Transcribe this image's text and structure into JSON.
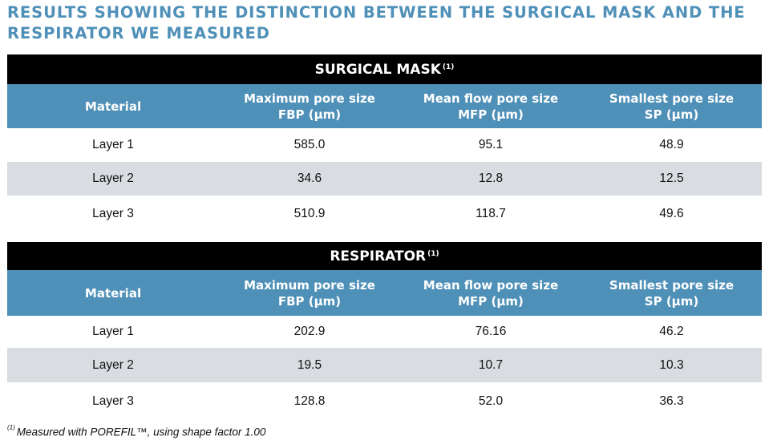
{
  "heading": {
    "line1": "RESULTS SHOWING THE DISTINCTION BETWEEN THE SURGICAL MASK AND THE",
    "line2": "RESPIRATOR WE MEASURED"
  },
  "tables": [
    {
      "title": "SURGICAL MASK",
      "title_note": "(1)",
      "columns": [
        {
          "line1": "Material",
          "line2": ""
        },
        {
          "line1": "Maximum pore size",
          "line2": "FBP (µm)"
        },
        {
          "line1": "Mean flow pore size",
          "line2": "MFP (µm)"
        },
        {
          "line1": "Smallest pore size",
          "line2": "SP (µm)"
        }
      ],
      "rows": [
        [
          "Layer 1",
          "585.0",
          "95.1",
          "48.9"
        ],
        [
          "Layer 2",
          "34.6",
          "12.8",
          "12.5"
        ],
        [
          "Layer 3",
          "510.9",
          "118.7",
          "49.6"
        ]
      ]
    },
    {
      "title": "RESPIRATOR",
      "title_note": "(1)",
      "columns": [
        {
          "line1": "Material",
          "line2": ""
        },
        {
          "line1": "Maximum pore size",
          "line2": "FBP (µm)"
        },
        {
          "line1": "Mean flow pore size",
          "line2": "MFP (µm)"
        },
        {
          "line1": "Smallest pore size",
          "line2": "SP (µm)"
        }
      ],
      "rows": [
        [
          "Layer 1",
          "202.9",
          "76.16",
          "46.2"
        ],
        [
          "Layer 2",
          "19.5",
          "10.7",
          "10.3"
        ],
        [
          "Layer 3",
          "128.8",
          "52.0",
          "36.3"
        ]
      ]
    }
  ],
  "footnote": {
    "marker": "(1)",
    "text": "Measured with POREFIL™, using shape factor 1.00"
  },
  "colors": {
    "heading": "#4f90b8",
    "header_band": "#4f90b8",
    "title_band": "#000000",
    "shaded_row": "#d9dce0"
  }
}
